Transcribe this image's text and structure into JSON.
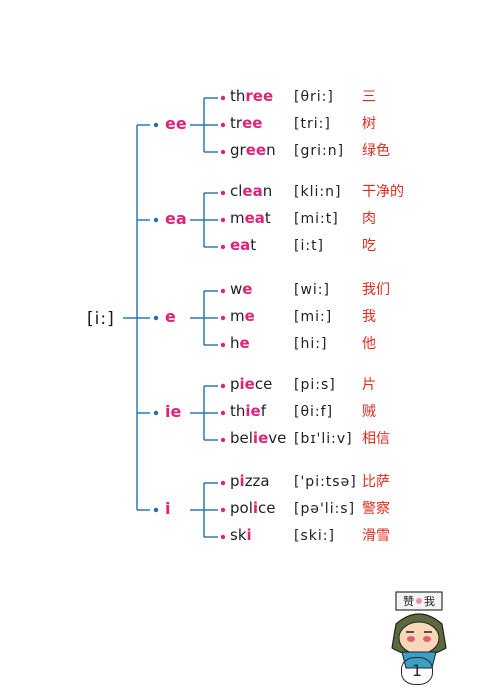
{
  "root": "[i:]",
  "colors": {
    "line": "#1f6fb5",
    "accent": "#e0237a",
    "meaning": "#e02b20",
    "text": "#222222"
  },
  "groups": [
    {
      "spelling": "ee",
      "words": [
        {
          "pre": "th",
          "hl": "ree",
          "post": "",
          "ipa": "[θri:]",
          "meaning": "三"
        },
        {
          "pre": "tr",
          "hl": "ee",
          "post": "",
          "ipa": "[tri:]",
          "meaning": "树"
        },
        {
          "pre": "gr",
          "hl": "ee",
          "post": "n",
          "ipa": "[gri:n]",
          "meaning": "绿色"
        }
      ]
    },
    {
      "spelling": "ea",
      "words": [
        {
          "pre": "cl",
          "hl": "ea",
          "post": "n",
          "ipa": "[kli:n]",
          "meaning": "干净的"
        },
        {
          "pre": "m",
          "hl": "ea",
          "post": "t",
          "ipa": "[mi:t]",
          "meaning": "肉"
        },
        {
          "pre": "",
          "hl": "ea",
          "post": "t",
          "ipa": "[i:t]",
          "meaning": "吃"
        }
      ]
    },
    {
      "spelling": "e",
      "words": [
        {
          "pre": "w",
          "hl": "e",
          "post": "",
          "ipa": "[wi:]",
          "meaning": "我们"
        },
        {
          "pre": "m",
          "hl": "e",
          "post": "",
          "ipa": "[mi:]",
          "meaning": "我"
        },
        {
          "pre": "h",
          "hl": "e",
          "post": "",
          "ipa": "[hi:]",
          "meaning": "他"
        }
      ]
    },
    {
      "spelling": "ie",
      "words": [
        {
          "pre": "p",
          "hl": "ie",
          "post": "ce",
          "ipa": "[pi:s]",
          "meaning": "片"
        },
        {
          "pre": "th",
          "hl": "ie",
          "post": "f",
          "ipa": "[θi:f]",
          "meaning": "贼"
        },
        {
          "pre": "bel",
          "hl": "ie",
          "post": "ve",
          "ipa": "[bɪ'li:v]",
          "meaning": "相信"
        }
      ]
    },
    {
      "spelling": "i",
      "words": [
        {
          "pre": "p",
          "hl": "i",
          "post": "zza",
          "ipa": "['pi:tsə]",
          "meaning": "比萨"
        },
        {
          "pre": "pol",
          "hl": "i",
          "post": "ce",
          "ipa": "[pə'li:s]",
          "meaning": "警察"
        },
        {
          "pre": "sk",
          "hl": "i",
          "post": "",
          "ipa": "[ski:]",
          "meaning": "滑雪"
        }
      ]
    }
  ],
  "badge_text": "赞我",
  "page_number": "1"
}
